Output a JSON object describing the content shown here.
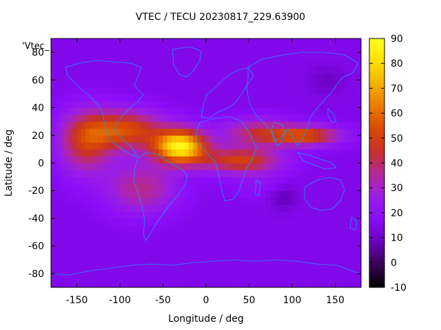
{
  "chart_data": {
    "type": "heatmap",
    "title": "VTEC / TECU 20230817_229.63900",
    "legend_label": "'Vtec_",
    "xlabel": "Longitude / deg",
    "ylabel": "Latitude / deg",
    "xlim": [
      -180,
      180
    ],
    "ylim": [
      -90,
      90
    ],
    "x_ticks": [
      -150,
      -100,
      -50,
      0,
      50,
      100,
      150
    ],
    "x_tick_labels": [
      "-150",
      "-100",
      "-50",
      "0",
      "50",
      "100",
      "150"
    ],
    "y_ticks": [
      -80,
      -60,
      -40,
      -20,
      0,
      20,
      40,
      60,
      80
    ],
    "y_tick_labels": [
      "-80",
      "-60",
      "-40",
      "-20",
      "0",
      "20",
      "40",
      "60",
      "80"
    ],
    "colorbar": {
      "range": [
        -10,
        90
      ],
      "ticks": [
        -10,
        0,
        10,
        20,
        30,
        40,
        50,
        60,
        70,
        80,
        90
      ],
      "tick_labels": [
        "-10",
        "0",
        "10",
        "20",
        "30",
        "40",
        "50",
        "60",
        "70",
        "80",
        "90"
      ],
      "colormap": [
        "#000000",
        "#3a0055",
        "#6a00bf",
        "#8a0cf8",
        "#9a1ee6",
        "#b3289b",
        "#c8302a",
        "#d94a00",
        "#ea7a00",
        "#f5b100",
        "#ffe000",
        "#ffff20"
      ]
    },
    "grid_step_deg": 5,
    "background_vtec": 15,
    "features": [
      {
        "lon": -30,
        "lat": 12,
        "amp": 70,
        "slon": 30,
        "slat": 12
      },
      {
        "lon": -95,
        "lat": 24,
        "amp": 38,
        "slon": 45,
        "slat": 14
      },
      {
        "lon": -140,
        "lat": 15,
        "amp": 30,
        "slon": 30,
        "slat": 22
      },
      {
        "lon": -75,
        "lat": -18,
        "amp": 22,
        "slon": 40,
        "slat": 18
      },
      {
        "lon": 40,
        "lat": 2,
        "amp": 35,
        "slon": 45,
        "slat": 9
      },
      {
        "lon": 115,
        "lat": 20,
        "amp": 38,
        "slon": 40,
        "slat": 7
      },
      {
        "lon": 60,
        "lat": 22,
        "amp": 25,
        "slon": 40,
        "slat": 10
      },
      {
        "lon": 60,
        "lat": -15,
        "amp": 5,
        "slon": 30,
        "slat": 10
      },
      {
        "lon": 90,
        "lat": -25,
        "amp": -8,
        "slon": 15,
        "slat": 8
      },
      {
        "lon": 140,
        "lat": 60,
        "amp": -6,
        "slon": 20,
        "slat": 10
      }
    ],
    "coastline_color": "#1e90ff"
  }
}
